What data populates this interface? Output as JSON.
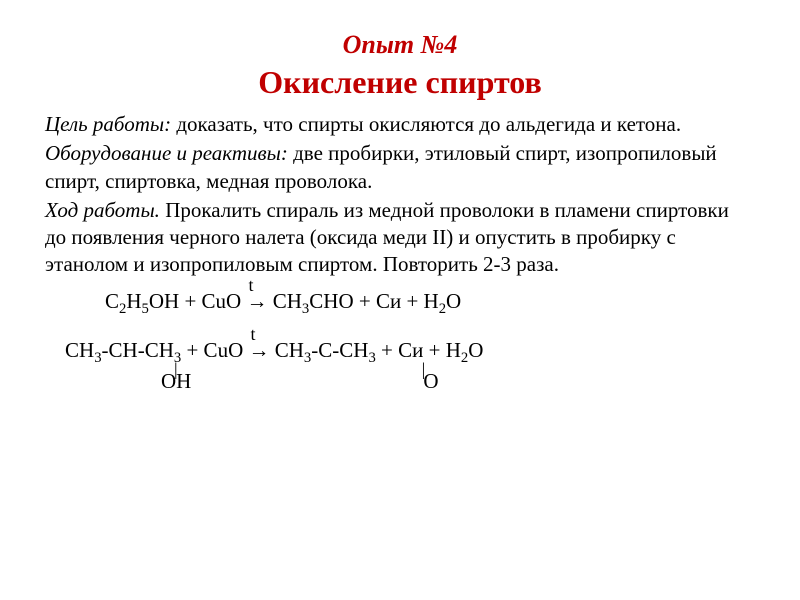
{
  "header": {
    "experiment_number": "Опыт №4",
    "title": "Окисление спиртов"
  },
  "goal": {
    "label": "Цель работы:",
    "text": " доказать, что спирты окисляются до альдегида и кетона."
  },
  "equipment": {
    "label": "Оборудование и реактивы:",
    "text": " две  пробирки, этиловый спирт, изопропиловый спирт,  спиртовка, медная проволока."
  },
  "procedure": {
    "label": "Ход работы.",
    "text": " Прокалить спираль из медной проволоки в пламени спиртовки до появления черного налета (оксида меди II) и опустить в пробирку с этанолом и изопропиловым спиртом. Повторить 2-3 раза."
  },
  "equations": {
    "eq1": {
      "lhs1": "C",
      "sub1": "2",
      "lhs2": "H",
      "sub2": "5",
      "lhs3": "OH + CuO ",
      "arrow": "→",
      "t": "t",
      "rhs1": " CH",
      "sub3": "3",
      "rhs2": "CHO + Cи + H",
      "sub4": "2",
      "rhs3": "O"
    },
    "eq2": {
      "lhs1": "CH",
      "sub1": "3",
      "lhs2": "-CH-CH",
      "sub2": "3",
      "lhs3": " + CuO ",
      "arrow": "→",
      "t": "t",
      "rhs1": " CH",
      "sub3": "3",
      "rhs2": "-C-CH",
      "sub4": "3",
      "rhs3": " + Cи + H",
      "sub5": "2",
      "rhs4": "O",
      "oh": "OH",
      "o": "O",
      "bond": "|"
    }
  },
  "colors": {
    "title_color": "#c00000",
    "text_color": "#000000",
    "background": "#ffffff"
  },
  "typography": {
    "title_fontsize": 32,
    "experiment_fontsize": 26,
    "body_fontsize": 21
  }
}
